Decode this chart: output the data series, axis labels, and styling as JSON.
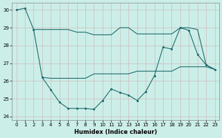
{
  "xlabel": "Humidex (Indice chaleur)",
  "background_color": "#cceee8",
  "grid_color": "#dddddd",
  "line_color": "#1a6b6b",
  "xlim": [
    -0.5,
    23.5
  ],
  "ylim": [
    23.8,
    30.4
  ],
  "yticks": [
    24,
    25,
    26,
    27,
    28,
    29,
    30
  ],
  "xticks": [
    0,
    1,
    2,
    3,
    4,
    5,
    6,
    7,
    8,
    9,
    10,
    11,
    12,
    13,
    14,
    15,
    16,
    17,
    18,
    19,
    20,
    21,
    22,
    23
  ],
  "line1_x": [
    0,
    1,
    2,
    3,
    4,
    5,
    6,
    7,
    8,
    9,
    10,
    11,
    12,
    13,
    14,
    15,
    16,
    17,
    18,
    19,
    20,
    21,
    22,
    23
  ],
  "line1_y": [
    30.0,
    30.1,
    28.9,
    26.2,
    25.5,
    24.8,
    24.45,
    24.45,
    24.45,
    24.4,
    24.9,
    25.55,
    25.35,
    25.2,
    24.9,
    25.4,
    26.3,
    27.9,
    27.8,
    29.0,
    28.85,
    27.5,
    26.9,
    26.65
  ],
  "line2_x": [
    2,
    3,
    4,
    5,
    6,
    7,
    8,
    9,
    10,
    11,
    12,
    13,
    14,
    15,
    16,
    17,
    18,
    19,
    20,
    21,
    22,
    23
  ],
  "line2_y": [
    28.9,
    28.9,
    28.9,
    28.9,
    28.9,
    28.75,
    28.75,
    28.6,
    28.6,
    28.6,
    29.0,
    29.0,
    28.65,
    28.65,
    28.65,
    28.65,
    28.65,
    29.0,
    29.0,
    28.9,
    26.9,
    26.65
  ],
  "line3_x": [
    3,
    4,
    5,
    6,
    7,
    8,
    9,
    10,
    11,
    12,
    13,
    14,
    15,
    16,
    17,
    18,
    19,
    20,
    21,
    22,
    23
  ],
  "line3_y": [
    26.2,
    26.15,
    26.15,
    26.15,
    26.15,
    26.15,
    26.4,
    26.4,
    26.4,
    26.4,
    26.4,
    26.55,
    26.55,
    26.55,
    26.55,
    26.55,
    26.8,
    26.8,
    26.8,
    26.8,
    26.65
  ]
}
